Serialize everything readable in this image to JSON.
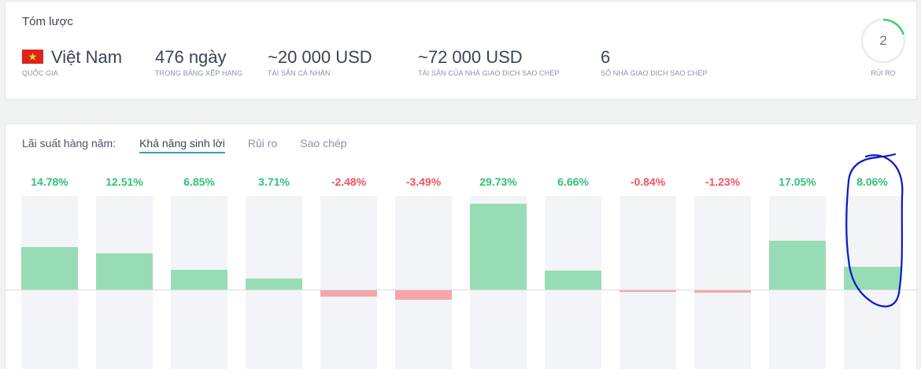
{
  "summary": {
    "title": "Tóm lược",
    "country": {
      "value": "Việt Nam",
      "label": "QUỐC GIA",
      "flag_icon": "vietnam-flag-icon"
    },
    "days": {
      "value": "476 ngày",
      "label": "TRONG BẢNG XẾP HẠNG"
    },
    "personal_assets": {
      "value": "~20 000 USD",
      "label": "TÀI SẢN CÁ NHÂN"
    },
    "copier_assets": {
      "value": "~72 000 USD",
      "label": "TÀI SẢN CỦA NHÀ GIAO DỊCH SAO CHÉP"
    },
    "copiers": {
      "value": "6",
      "label": "SỐ NHÀ GIAO DỊCH SAO CHÉP"
    },
    "risk": {
      "value": "2",
      "label": "RỦI RO",
      "level_fraction": 0.2
    }
  },
  "returns": {
    "label": "Lãi suất hàng năm:",
    "tabs": [
      {
        "label": "Khả năng sinh lời",
        "active": true
      },
      {
        "label": "Rủi ro",
        "active": false
      },
      {
        "label": "Sao chép",
        "active": false
      }
    ]
  },
  "colors": {
    "positive": "#2fc27a",
    "negative": "#f0545f",
    "positive_bar": "#98dcb5",
    "negative_bar": "#f7a4ac",
    "active_tab": "#3b9bbd",
    "annotation": "#0a17c8"
  },
  "chart_data": {
    "type": "bar",
    "values": [
      14.78,
      12.51,
      6.85,
      3.71,
      -2.48,
      -3.49,
      29.73,
      6.66,
      -0.84,
      -1.23,
      17.05,
      8.06
    ],
    "labels": [
      "14.78%",
      "12.51%",
      "6.85%",
      "3.71%",
      "-2.48%",
      "-3.49%",
      "29.73%",
      "6.66%",
      "-0.84%",
      "-1.23%",
      "17.05%",
      "8.06%"
    ],
    "highlighted_index": 11
  }
}
